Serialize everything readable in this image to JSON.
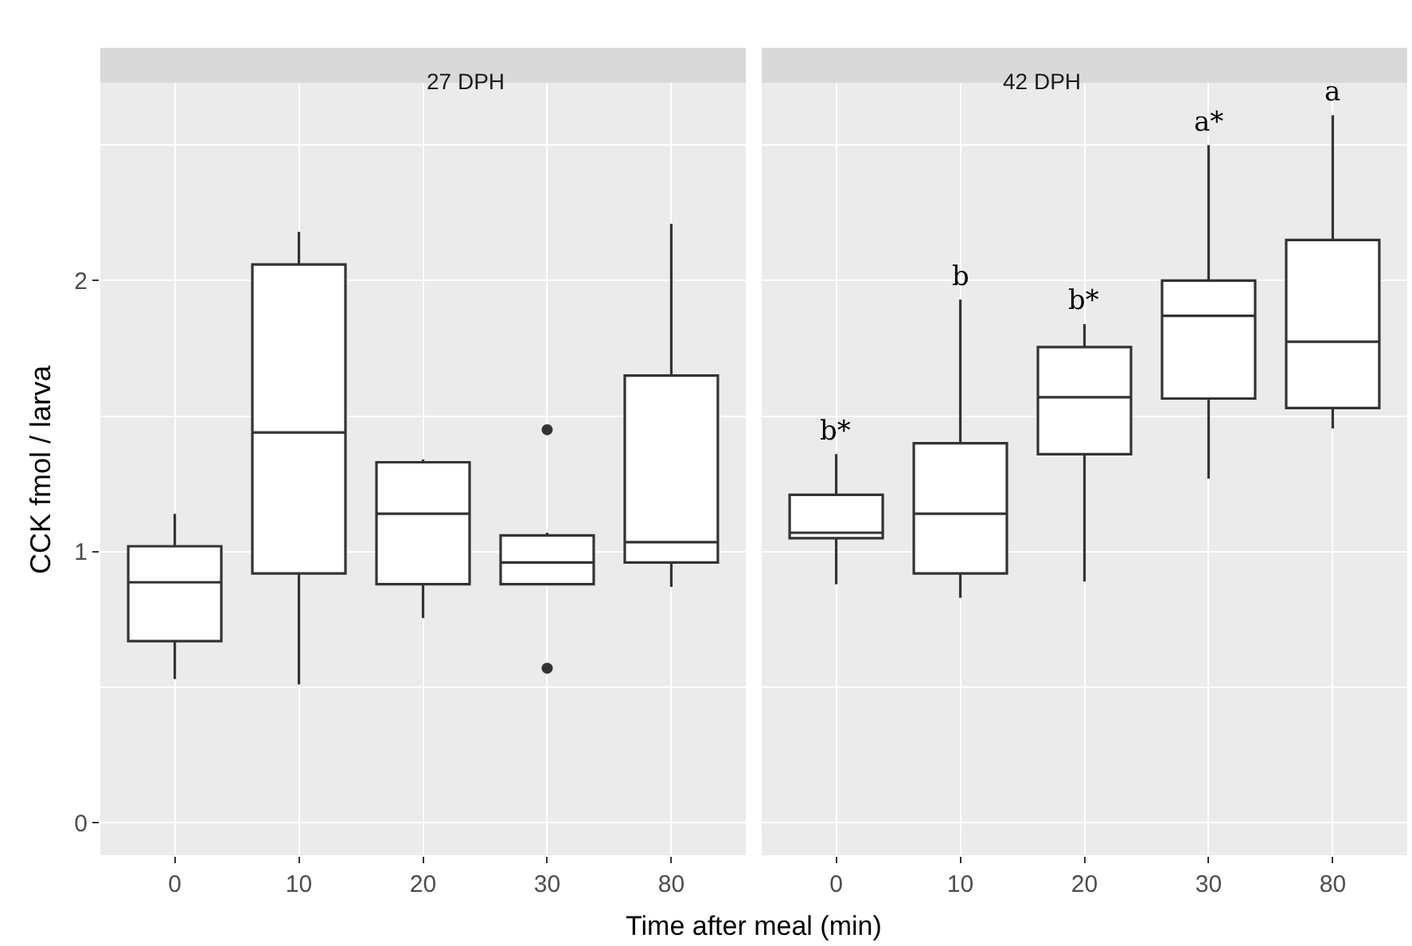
{
  "chart_data": [
    {
      "type": "box",
      "title": "27 DPH",
      "ylabel": "CCK fmol / larva",
      "xlabel": "Time after meal (min)",
      "categories": [
        "0",
        "10",
        "20",
        "30",
        "80"
      ],
      "ylim": [
        -0.12,
        2.73
      ],
      "yticks": [
        0,
        1,
        2
      ],
      "grid": true,
      "color": "#333333",
      "boxes": [
        {
          "low": 0.53,
          "q1": 0.67,
          "median": 0.887,
          "q3": 1.02,
          "high": 1.14
        },
        {
          "low": 0.51,
          "q1": 0.92,
          "median": 1.44,
          "q3": 2.06,
          "high": 2.18
        },
        {
          "low": 0.755,
          "q1": 0.88,
          "median": 1.14,
          "q3": 1.33,
          "high": 1.34
        },
        {
          "low": 0.88,
          "q1": 0.88,
          "median": 0.96,
          "q3": 1.06,
          "high": 1.07,
          "outliers": [
            1.45,
            0.57
          ]
        },
        {
          "low": 0.87,
          "q1": 0.96,
          "median": 1.035,
          "q3": 1.65,
          "high": 2.21
        }
      ]
    },
    {
      "type": "box",
      "title": "42 DPH",
      "categories": [
        "0",
        "10",
        "20",
        "30",
        "80"
      ],
      "ylim": [
        -0.12,
        2.73
      ],
      "yticks": [
        0,
        1,
        2
      ],
      "grid": true,
      "tick_labels": "x",
      "color": "#333333",
      "boxes": [
        {
          "low": 0.88,
          "q1": 1.05,
          "median": 1.07,
          "q3": 1.21,
          "high": 1.36
        },
        {
          "low": 0.83,
          "q1": 0.92,
          "median": 1.14,
          "q3": 1.4,
          "high": 1.93
        },
        {
          "low": 0.89,
          "q1": 1.36,
          "median": 1.57,
          "q3": 1.755,
          "high": 1.84
        },
        {
          "low": 1.27,
          "q1": 1.565,
          "median": 1.87,
          "q3": 2.0,
          "high": 2.5
        },
        {
          "low": 1.455,
          "q1": 1.53,
          "median": 1.775,
          "q3": 2.15,
          "high": 2.61
        }
      ],
      "annotations": [
        {
          "text": "b*",
          "x": "0",
          "y": 1.36
        },
        {
          "text": "b",
          "x": "10",
          "y": 1.93
        },
        {
          "text": "b*",
          "x": "20",
          "y": 1.84
        },
        {
          "text": "a*",
          "x": "30",
          "y": 2.5
        },
        {
          "text": "a",
          "x": "80",
          "y": 2.61
        }
      ]
    }
  ]
}
